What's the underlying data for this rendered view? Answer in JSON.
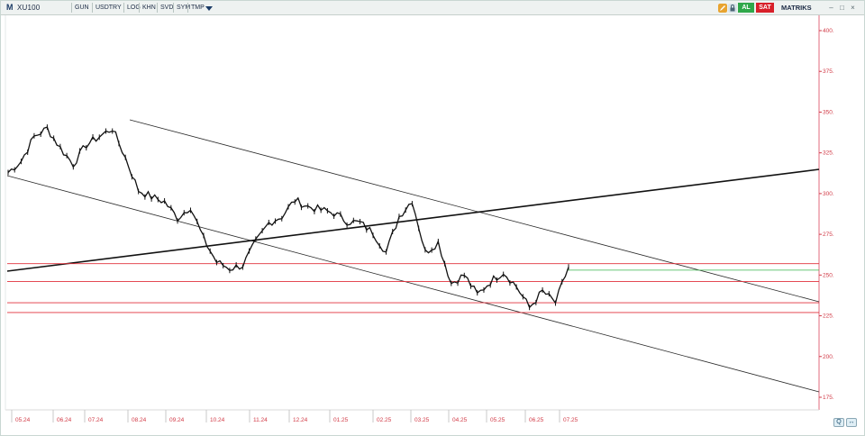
{
  "toolbar": {
    "logo": "M",
    "symbol": "XU100",
    "buttons": [
      "GUN",
      "USDTRY",
      "LOG",
      "KHN",
      "SVD",
      "SYM",
      "TMP"
    ],
    "al_label": "AL",
    "sat_label": "SAT",
    "brand": "MATRIKS",
    "icons": [
      "dropdown-icon",
      "pencil-icon",
      "lock-icon",
      "minimize-icon",
      "maximize-icon",
      "close-icon"
    ]
  },
  "colors": {
    "accent_red": "#d23c48",
    "support_line": "#e0313b",
    "price_bar": "#111111",
    "trend_line": "#1a1a1a",
    "current_marker": "#39b54a",
    "al": "#2fa84a",
    "sat": "#d8202a"
  },
  "chart_data": {
    "type": "line",
    "y_ticks": [
      "400.",
      "375.",
      "350.",
      "325.",
      "300.",
      "275.",
      "250.",
      "225.",
      "200.",
      "175."
    ],
    "x_ticks": [
      "05.24",
      "06.24",
      "07.24",
      "08.24",
      "09.24",
      "10.24",
      "11.24",
      "12.24",
      "01.25",
      "02.25",
      "03.25",
      "04.25",
      "05.25",
      "06.25",
      "07.25"
    ],
    "ylim": [
      170,
      410
    ],
    "x": [
      "05.24",
      "05.24",
      "05.24",
      "06.24",
      "06.24",
      "06.24",
      "07.24",
      "07.24",
      "07.24",
      "08.24",
      "08.24",
      "08.24",
      "09.24",
      "09.24",
      "09.24",
      "10.24",
      "10.24",
      "10.24",
      "11.24",
      "11.24",
      "11.24",
      "12.24",
      "12.24",
      "12.24",
      "01.25",
      "01.25",
      "01.25",
      "02.25",
      "02.25",
      "02.25",
      "03.25",
      "03.25",
      "03.25",
      "03.25",
      "04.25",
      "04.25",
      "04.25",
      "05.25",
      "05.25",
      "05.25",
      "06.25",
      "06.25",
      "06.25",
      "07.25"
    ],
    "series": [
      {
        "values": [
          313,
          320,
          335,
          340,
          328,
          318,
          330,
          335,
          340,
          322,
          302,
          298,
          295,
          285,
          292,
          272,
          258,
          254,
          256,
          270,
          282,
          286,
          296,
          292,
          290,
          288,
          283,
          282,
          276,
          264,
          286,
          296,
          264,
          270,
          245,
          250,
          238,
          246,
          252,
          243,
          230,
          240,
          233,
          255
        ]
      }
    ],
    "support_levels": [
      257,
      246,
      233,
      227
    ],
    "current_value": 253,
    "trendlines": [
      "upper-channel",
      "lower-channel",
      "rising-trend"
    ],
    "grid": false,
    "legend": "none"
  },
  "scroll": {
    "zoom_label": "Q",
    "nav_label": "↔"
  }
}
